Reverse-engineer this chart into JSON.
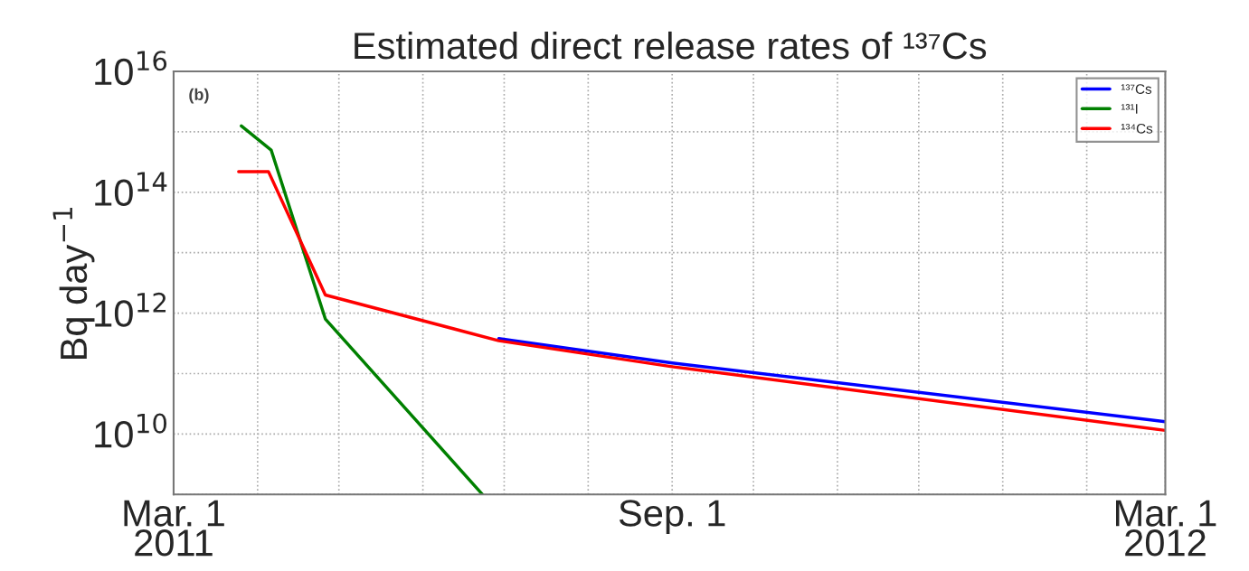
{
  "chart_data": {
    "type": "line",
    "title": "Estimated direct release rates of ¹³⁷Cs",
    "ylabel": "Bq day$^{−1}$",
    "annotations": [
      "(b)"
    ],
    "log": "y",
    "grid": true,
    "legend": "top right",
    "line_style": "solid",
    "xlim": [
      "2011-03-01",
      "2012-03-01"
    ],
    "xticks": [
      {
        "value": "2011-03-01",
        "label": "Mar. 1\n2011"
      },
      {
        "value": "2011-04-01",
        "label": null
      },
      {
        "value": "2011-05-01",
        "label": null
      },
      {
        "value": "2011-06-01",
        "label": null
      },
      {
        "value": "2011-07-01",
        "label": null
      },
      {
        "value": "2011-08-01",
        "label": null
      },
      {
        "value": "2011-09-01",
        "label": "Sep. 1"
      },
      {
        "value": "2011-10-01",
        "label": null
      },
      {
        "value": "2011-11-01",
        "label": null
      },
      {
        "value": "2011-12-01",
        "label": null
      },
      {
        "value": "2012-01-01",
        "label": null
      },
      {
        "value": "2012-02-01",
        "label": null
      },
      {
        "value": "2012-03-01",
        "label": "Mar. 1\n2012"
      }
    ],
    "ylim": [
      1000000000.0,
      1e+16
    ],
    "yticks": [
      {
        "value": 1000000000.0,
        "label": null
      },
      {
        "value": 10000000000.0,
        "label": "10$^{10}$"
      },
      {
        "value": 100000000000.0,
        "label": null
      },
      {
        "value": 1000000000000.0,
        "label": "10$^{12}$"
      },
      {
        "value": 10000000000000.0,
        "label": null
      },
      {
        "value": 100000000000000.0,
        "label": "10$^{14}$"
      },
      {
        "value": 1000000000000000.0,
        "label": null
      },
      {
        "value": 1e+16,
        "label": "10$^{16}$"
      }
    ],
    "series": [
      {
        "name": "¹³⁷Cs",
        "color": "#0000ff",
        "x": [
          "2011-06-29",
          "2011-09-01",
          "2012-03-01"
        ],
        "values": [
          380000000000.0,
          150000000000.0,
          16000000000.0
        ]
      },
      {
        "name": "¹³¹I",
        "color": "#008000",
        "x": [
          "2011-03-26",
          "2011-04-06",
          "2011-04-26",
          "2011-06-23"
        ],
        "values": [
          1250000000000000.0,
          500000000000000.0,
          800000000000.0,
          1000000000.0
        ]
      },
      {
        "name": "¹³⁴Cs",
        "color": "#ff0000",
        "x": [
          "2011-03-25",
          "2011-04-05",
          "2011-04-26",
          "2011-06-29",
          "2011-09-01",
          "2012-03-01"
        ],
        "values": [
          220000000000000.0,
          220000000000000.0,
          2000000000000.0,
          350000000000.0,
          130000000000.0,
          11500000000.0
        ]
      }
    ]
  }
}
